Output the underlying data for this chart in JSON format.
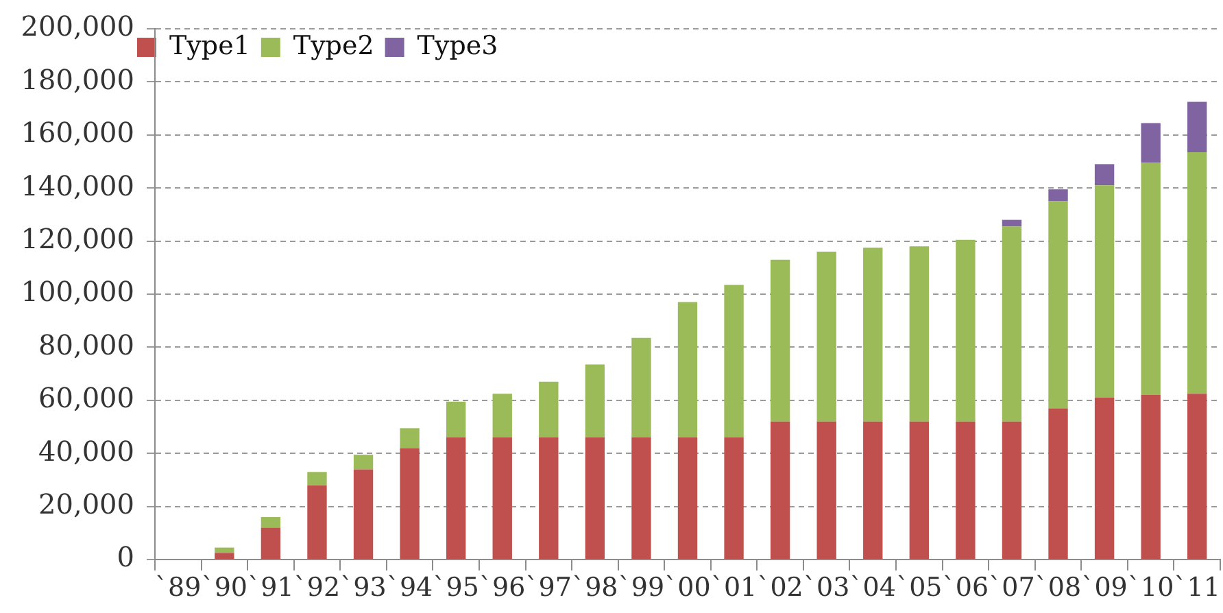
{
  "chart_data": {
    "type": "bar",
    "stacked": true,
    "categories": [
      "`89",
      "`90",
      "`91",
      "`92",
      "`93",
      "`94",
      "`95",
      "`96",
      "`97",
      "`98",
      "`99",
      "`00",
      "`01",
      "`02",
      "`03",
      "`04",
      "`05",
      "`06",
      "`07",
      "`08",
      "`09",
      "`10",
      "`11"
    ],
    "series": [
      {
        "name": "Type1",
        "color": "#c0504d",
        "values": [
          null,
          2500,
          12000,
          28000,
          34000,
          42000,
          46000,
          46000,
          46000,
          46000,
          46000,
          46000,
          46000,
          52000,
          52000,
          52000,
          52000,
          52000,
          52000,
          57000,
          61000,
          62000,
          62500
        ]
      },
      {
        "name": "Type2",
        "color": "#9bbb59",
        "values": [
          null,
          2000,
          4000,
          5000,
          5500,
          7500,
          13500,
          16500,
          21000,
          27500,
          37500,
          51000,
          57500,
          61000,
          64000,
          65500,
          66000,
          68500,
          73500,
          78000,
          80000,
          87500,
          91000
        ]
      },
      {
        "name": "Type3",
        "color": "#8064a2",
        "values": [
          null,
          null,
          null,
          null,
          null,
          null,
          null,
          null,
          null,
          null,
          null,
          null,
          null,
          null,
          null,
          null,
          null,
          null,
          2500,
          4500,
          8000,
          15000,
          19000
        ]
      }
    ],
    "ylim": [
      0,
      200000
    ],
    "yticks": [
      0,
      {
        "value": 20000,
        "label": "20,000"
      },
      {
        "value": 40000,
        "label": "40,000"
      },
      {
        "value": 60000,
        "label": "60,000"
      },
      {
        "value": 80000,
        "label": "80,000"
      },
      {
        "value": 100000,
        "label": "100,000"
      },
      {
        "value": 120000,
        "label": "120,000"
      },
      {
        "value": 140000,
        "label": "140,000"
      },
      {
        "value": 160000,
        "label": "160,000"
      },
      {
        "value": 180000,
        "label": "180,000"
      },
      {
        "value": 200000,
        "label": "200,000"
      }
    ],
    "grid": "y",
    "legend": "top left"
  }
}
